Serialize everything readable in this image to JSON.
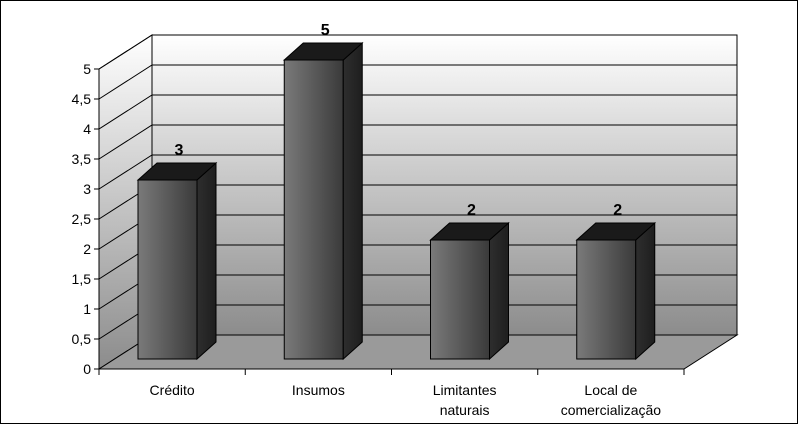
{
  "chart_data": {
    "type": "bar",
    "style": "3d-column",
    "categories": [
      [
        "Crédito"
      ],
      [
        "Insumos"
      ],
      [
        "Limitantes",
        "naturais"
      ],
      [
        "Local de",
        "comercialização"
      ]
    ],
    "values": [
      3,
      5,
      2,
      2
    ],
    "data_labels": [
      "3",
      "5",
      "2",
      "2"
    ],
    "ylim": [
      0,
      5
    ],
    "y_ticks": [
      "0",
      "0,5",
      "1",
      "1,5",
      "2",
      "2,5",
      "3",
      "3,5",
      "4",
      "4,5",
      "5"
    ],
    "y_tick_values": [
      0,
      0.5,
      1,
      1.5,
      2,
      2.5,
      3,
      3.5,
      4,
      4.5,
      5
    ],
    "title": "",
    "xlabel": "",
    "ylabel": "",
    "grid": true,
    "legend": "none",
    "colors": {
      "bar_front_light": "#7a7a7a",
      "bar_front_dark": "#3a3a3a",
      "bar_top": "#1a1a1a",
      "bar_side": "#2a2a2a",
      "wall_top": "#ffffff",
      "wall_bottom": "#8c8c8c",
      "floor": "#9a9a9a",
      "gridline": "#000000"
    }
  }
}
